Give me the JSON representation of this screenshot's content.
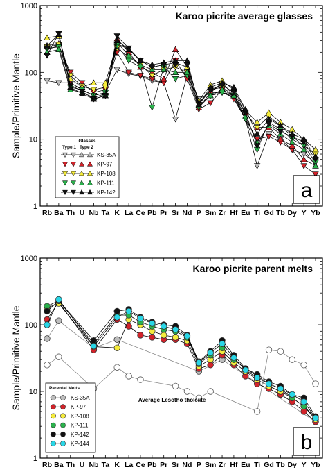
{
  "y_axis_label": "Sample/Primitive Mantle",
  "colors": {
    "KS-35A": "#bdbdbd",
    "KP-97": "#d2232a",
    "KP-108": "#f5ec3c",
    "KP-111": "#2bb24c",
    "KP-142": "#111111",
    "KP-144": "#29d6e6",
    "tholeiite": "#ffffff"
  },
  "chart_data": [
    {
      "type": "line",
      "title": "Karoo picrite average glasses",
      "panel_label": "a",
      "ylabel": "Sample/Primitive Mantle",
      "yscale": "log",
      "ylim": [
        1,
        1000
      ],
      "y_ticks": [
        "1",
        "10",
        "100",
        "1000"
      ],
      "categories": [
        "Rb",
        "Ba",
        "Th",
        "U",
        "Nb",
        "Ta",
        "K",
        "La",
        "Ce",
        "Pb",
        "Pr",
        "Sr",
        "Nd",
        "P",
        "Sm",
        "Zr",
        "Hf",
        "Eu",
        "Ti",
        "Gd",
        "Tb",
        "Dy",
        "Y",
        "Yb"
      ],
      "legend_title": "Glasses",
      "legend_subtitles": [
        "Type 1",
        "Type 2"
      ],
      "legend_entries": [
        "KS-35A",
        "KP-97",
        "KP-108",
        "KP-111",
        "KP-142"
      ],
      "legend_location": "lower-left",
      "series": [
        {
          "name": "KS-35A",
          "marker": "triangle-down",
          "values": [
            75,
            70,
            70,
            55,
            45,
            50,
            110,
            95,
            88,
            75,
            70,
            20,
            90,
            40,
            50,
            50,
            42,
            20,
            4,
            12,
            10,
            7,
            6,
            4.5
          ]
        },
        {
          "name": "KP-97",
          "marker": "triangle-down",
          "values": [
            220,
            250,
            100,
            70,
            50,
            55,
            200,
            100,
            90,
            80,
            70,
            150,
            80,
            28,
            35,
            55,
            40,
            20,
            10,
            11,
            9,
            7,
            4,
            3
          ]
        },
        {
          "name": "KP-97",
          "marker": "triangle-up",
          "values": [
            250,
            270,
            70,
            55,
            45,
            50,
            320,
            200,
            120,
            100,
            80,
            220,
            120,
            30,
            50,
            70,
            45,
            25,
            15,
            15,
            10,
            8,
            5,
            4
          ]
        },
        {
          "name": "KP-108",
          "marker": "triangle-down",
          "values": [
            240,
            260,
            90,
            62,
            55,
            60,
            230,
            170,
            130,
            90,
            110,
            120,
            100,
            33,
            55,
            60,
            45,
            25,
            15,
            22,
            16,
            11,
            8,
            6
          ]
        },
        {
          "name": "KP-108",
          "marker": "triangle-up",
          "values": [
            330,
            350,
            80,
            60,
            70,
            70,
            270,
            220,
            150,
            120,
            130,
            140,
            120,
            38,
            65,
            75,
            55,
            27,
            18,
            25,
            18,
            14,
            10,
            7
          ]
        },
        {
          "name": "KP-111",
          "marker": "triangle-down",
          "values": [
            230,
            240,
            60,
            55,
            45,
            50,
            250,
            150,
            120,
            30,
            120,
            80,
            90,
            30,
            45,
            50,
            45,
            20,
            7,
            18,
            14,
            10,
            8,
            4.5
          ]
        },
        {
          "name": "KP-111",
          "marker": "triangle-up",
          "values": [
            200,
            220,
            55,
            50,
            42,
            48,
            280,
            180,
            130,
            110,
            110,
            100,
            100,
            32,
            45,
            55,
            45,
            22,
            9,
            16,
            12,
            9,
            7,
            4
          ]
        },
        {
          "name": "KP-142",
          "marker": "triangle-down",
          "values": [
            180,
            380,
            65,
            52,
            40,
            45,
            350,
            230,
            150,
            120,
            130,
            130,
            130,
            35,
            55,
            65,
            50,
            25,
            8,
            17,
            13,
            11,
            9,
            5
          ]
        },
        {
          "name": "KP-142",
          "marker": "triangle-up",
          "values": [
            250,
            370,
            60,
            48,
            40,
            45,
            300,
            220,
            150,
            130,
            140,
            150,
            150,
            33,
            60,
            70,
            60,
            28,
            12,
            20,
            16,
            12,
            10,
            5.5
          ]
        }
      ]
    },
    {
      "type": "line",
      "title": "Karoo picrite parent melts",
      "panel_label": "b",
      "ylabel": "Sample/Primitive Mantle",
      "yscale": "log",
      "ylim": [
        1,
        1000
      ],
      "y_ticks": [
        "1",
        "10",
        "100",
        "1000"
      ],
      "categories": [
        "Rb",
        "Ba",
        "Th",
        "U",
        "Nb",
        "Ta",
        "K",
        "La",
        "Ce",
        "Pb",
        "Pr",
        "Sr",
        "Nd",
        "P",
        "Sm",
        "Zr",
        "Hf",
        "Eu",
        "Ti",
        "Gd",
        "Tb",
        "Dy",
        "Y",
        "Yb"
      ],
      "legend_title": "Parental Melts",
      "legend_entries": [
        "KS-35A",
        "KP-97",
        "KP-108",
        "KP-111",
        "KP-142",
        "KP-144"
      ],
      "legend_location": "lower-left",
      "annotation": "Average Lesotho tholeiite",
      "series": [
        {
          "name": "KS-35A",
          "values": [
            62,
            115,
            null,
            null,
            45,
            null,
            60,
            null,
            null,
            null,
            null,
            null,
            null,
            20,
            null,
            30,
            null,
            null,
            null,
            null,
            null,
            null,
            null,
            3.5
          ]
        },
        {
          "name": "KP-97",
          "values": [
            120,
            220,
            null,
            null,
            42,
            null,
            120,
            95,
            70,
            65,
            60,
            60,
            52,
            22,
            25,
            35,
            25,
            17,
            13,
            11,
            9,
            7,
            5,
            3.5
          ]
        },
        {
          "name": "KP-108",
          "values": [
            180,
            210,
            null,
            null,
            47,
            null,
            45,
            120,
            100,
            80,
            70,
            65,
            58,
            24,
            30,
            40,
            27,
            20,
            15,
            12,
            10,
            8,
            6,
            3.8
          ]
        },
        {
          "name": "KP-111",
          "values": [
            190,
            230,
            null,
            null,
            52,
            null,
            140,
            140,
            110,
            95,
            85,
            80,
            65,
            26,
            35,
            45,
            30,
            22,
            17,
            13,
            11,
            8,
            6,
            4
          ]
        },
        {
          "name": "KP-142",
          "values": [
            160,
            230,
            null,
            null,
            58,
            null,
            160,
            170,
            130,
            110,
            100,
            95,
            70,
            28,
            40,
            58,
            35,
            22,
            18,
            14,
            12,
            9,
            8,
            4.2
          ]
        },
        {
          "name": "KP-144",
          "values": [
            100,
            240,
            null,
            null,
            48,
            null,
            130,
            160,
            125,
            105,
            95,
            85,
            68,
            27,
            38,
            52,
            32,
            21,
            16,
            13,
            11,
            9,
            7,
            4
          ]
        },
        {
          "name": "Average Lesotho tholeiite",
          "values": [
            25,
            33,
            null,
            null,
            11,
            null,
            23,
            17,
            15,
            null,
            null,
            12,
            10,
            8,
            10,
            null,
            null,
            null,
            5,
            42,
            40,
            30,
            25,
            13
          ]
        }
      ]
    }
  ]
}
